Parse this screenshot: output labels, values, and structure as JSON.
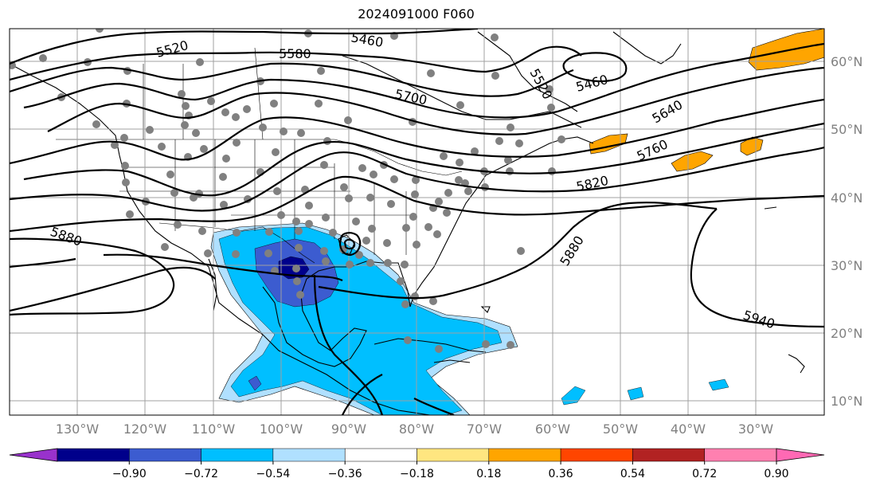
{
  "title": "2024091000 F060",
  "lon_labels": [
    "130°W",
    "120°W",
    "110°W",
    "100°W",
    "90°W",
    "80°W",
    "70°W",
    "60°W",
    "50°W",
    "40°W",
    "30°W"
  ],
  "lat_labels": [
    "60°N",
    "50°N",
    "40°N",
    "30°N",
    "20°N",
    "10°N"
  ],
  "contour_labels": [
    "5520",
    "5460",
    "5580",
    "5520",
    "5460",
    "5700",
    "5640",
    "5760",
    "5820",
    "5880",
    "5880",
    "5940"
  ],
  "colorbar": {
    "colors": [
      "#9932cc",
      "#00008b",
      "#3c5cd0",
      "#00bfff",
      "#b0e0ff",
      "#ffffff",
      "#ffe680",
      "#ffa500",
      "#ff4500",
      "#b22222",
      "#ff80b0",
      "#ff69b4"
    ],
    "tick_labels": [
      "−0.90",
      "−0.72",
      "−0.54",
      "−0.36",
      "−0.18",
      "0.18",
      "0.36",
      "0.54",
      "0.72",
      "0.90"
    ]
  }
}
